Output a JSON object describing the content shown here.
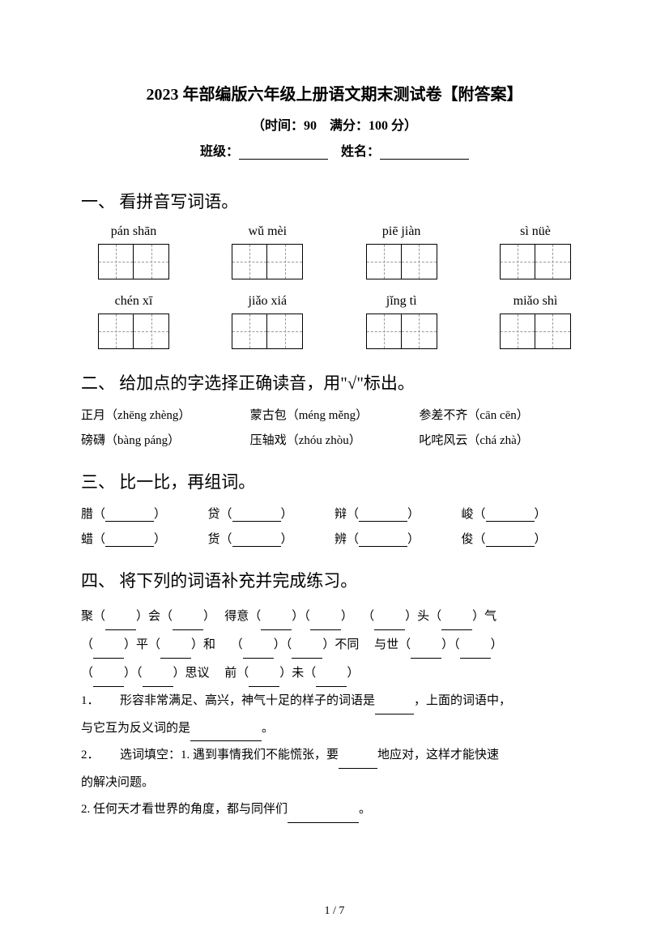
{
  "title": "2023 年部编版六年级上册语文期末测试卷【附答案】",
  "subtitle": "（时间：90　满分：100 分）",
  "info": {
    "class_label": "班级：",
    "name_label": "姓名："
  },
  "section1": {
    "heading": "一、 看拼音写词语。",
    "row1": [
      "pán shān",
      "wǔ mèi",
      "piē jiàn",
      "sì nüè"
    ],
    "row2": [
      "chén xī",
      "jiǎo xiá",
      "jǐng tì",
      "miǎo shì"
    ]
  },
  "section2": {
    "heading": "二、 给加点的字选择正确读音，用\"√\"标出。",
    "items": [
      {
        "prefix": "正",
        "suffix": "月",
        "reading": "（zhēng zhèng）"
      },
      {
        "prefix": "蒙",
        "suffix": "古包",
        "reading": "（méng měng）"
      },
      {
        "prefix": "参",
        "suffix": "差不齐",
        "reading": "（cān cēn）"
      },
      {
        "prefix": "磅",
        "suffix": "礴",
        "reading": "（bàng páng）"
      },
      {
        "prefix": "压轴",
        "suffix": "戏",
        "reading": "（zhóu zhòu）"
      },
      {
        "prefix": "叱咤",
        "suffix": "风云",
        "reading": "（chá zhà）"
      }
    ]
  },
  "section3": {
    "heading": "三、 比一比，再组词。",
    "row1": [
      "腊",
      "贷",
      "辩",
      "峻"
    ],
    "row2": [
      "蜡",
      "货",
      "辨",
      "俊"
    ]
  },
  "section4": {
    "heading": "四、 将下列的词语补充并完成练习。",
    "lines": [
      [
        {
          "t": "聚（"
        },
        {
          "b": 1
        },
        {
          "t": "）会（"
        },
        {
          "b": 1
        },
        {
          "t": "）　 得意（"
        },
        {
          "b": 1
        },
        {
          "t": "）（"
        },
        {
          "b": 1
        },
        {
          "t": "）　 （"
        },
        {
          "b": 1
        },
        {
          "t": "）头（"
        },
        {
          "b": 1
        },
        {
          "t": "）气"
        }
      ],
      [
        {
          "t": "（"
        },
        {
          "b": 1
        },
        {
          "t": "）平（"
        },
        {
          "b": 1
        },
        {
          "t": "）和　 （"
        },
        {
          "b": 1
        },
        {
          "t": "）（"
        },
        {
          "b": 1
        },
        {
          "t": "）不同　 与世（"
        },
        {
          "b": 1
        },
        {
          "t": "）（"
        },
        {
          "b": 1
        },
        {
          "t": "）"
        }
      ],
      [
        {
          "t": "（"
        },
        {
          "b": 1
        },
        {
          "t": "）（"
        },
        {
          "b": 1
        },
        {
          "t": "）思议　 前（"
        },
        {
          "b": 1
        },
        {
          "t": "）未（"
        },
        {
          "b": 1
        },
        {
          "t": "）"
        }
      ]
    ],
    "sub1_a": "1．",
    "sub1_b": "形容非常满足、高兴，神气十足的样子的词语是",
    "sub1_c": "，上面的词语中，",
    "sub1_d": "与它互为反义词的是",
    "sub1_e": "。",
    "sub2_a": "2．",
    "sub2_b": "选词填空：1. 遇到事情我们不能慌张，要",
    "sub2_c": "地应对，这样才能快速",
    "sub2_d": "的解决问题。",
    "sub2_e": "2. 任何天才看世界的角度，都与同伴们",
    "sub2_f": "。"
  },
  "pager": "1 / 7"
}
